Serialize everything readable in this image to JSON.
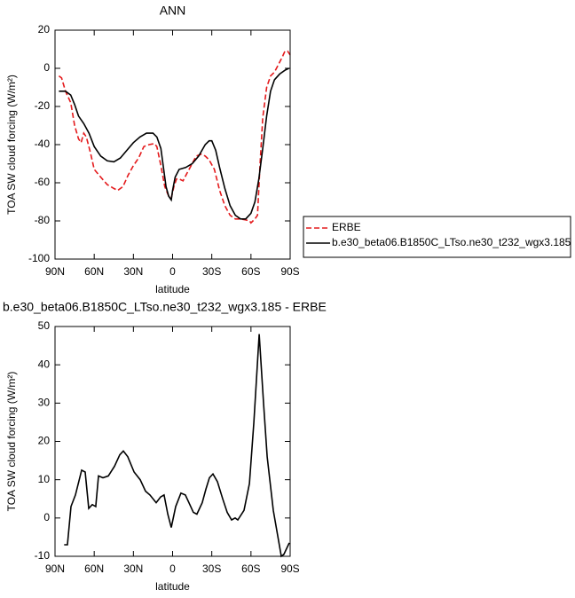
{
  "chart_data": [
    {
      "type": "line",
      "title": "ANN",
      "xlabel": "latitude",
      "ylabel": "TOA SW cloud forcing (W/m²)",
      "xlim": [
        90,
        -90
      ],
      "xticks": [
        {
          "value": 90,
          "label": "90N"
        },
        {
          "value": 60,
          "label": "60N"
        },
        {
          "value": 30,
          "label": "30N"
        },
        0,
        {
          "value": -30,
          "label": "30S"
        },
        {
          "value": -60,
          "label": "60S"
        },
        {
          "value": -90,
          "label": "90S"
        }
      ],
      "ylim": [
        -100,
        20
      ],
      "yticks": [
        -100,
        -80,
        -60,
        -40,
        -20,
        0,
        20
      ],
      "legend": "right",
      "series": [
        {
          "name": "ERBE",
          "color": "#e41a1c",
          "dashed": true,
          "x": [
            87,
            85,
            82,
            78,
            75,
            72,
            70,
            68,
            66,
            63,
            60,
            55,
            50,
            45,
            42,
            38,
            34,
            30,
            26,
            22,
            18,
            14,
            12,
            9,
            6,
            3,
            1,
            -1,
            -3,
            -5,
            -8,
            -11,
            -15,
            -18,
            -22,
            -25,
            -28,
            -32,
            -36,
            -40,
            -44,
            -48,
            -52,
            -56,
            -59,
            -60,
            -63,
            -65,
            -67,
            -69,
            -72,
            -75,
            -78,
            -81,
            -84,
            -86,
            -88,
            -90
          ],
          "values": [
            -4,
            -5,
            -12,
            -18,
            -30,
            -37,
            -39,
            -34,
            -36,
            -44,
            -53,
            -57,
            -61,
            -63,
            -64,
            -62,
            -56,
            -51,
            -47,
            -41,
            -40,
            -39.5,
            -41,
            -51,
            -62,
            -67,
            -68,
            -62,
            -58,
            -58,
            -59,
            -55,
            -50,
            -46,
            -45,
            -46,
            -48,
            -53,
            -64,
            -72,
            -77,
            -79,
            -79,
            -79.5,
            -80,
            -81,
            -79,
            -77,
            -50,
            -26,
            -10,
            -4,
            -2,
            2,
            6,
            9,
            9,
            7
          ]
        },
        {
          "name": "b.e30_beta06.B1850C_LTso.ne30_t232_wgx3.185",
          "color": "#000000",
          "dashed": false,
          "x": [
            87,
            82,
            78,
            75,
            72,
            68,
            64,
            60,
            55,
            50,
            45,
            40,
            35,
            30,
            25,
            20,
            15,
            12,
            9,
            7,
            5,
            3,
            1,
            0,
            -2,
            -5,
            -10,
            -15,
            -20,
            -25,
            -28,
            -30,
            -33,
            -36,
            -40,
            -44,
            -48,
            -52,
            -56,
            -60,
            -63,
            -66,
            -69,
            -72,
            -75,
            -78,
            -82,
            -86,
            -89
          ],
          "values": [
            -12,
            -12,
            -14,
            -19,
            -25,
            -29,
            -34,
            -41,
            -46,
            -48.5,
            -49,
            -47,
            -43,
            -39,
            -36,
            -34,
            -34,
            -36,
            -42,
            -52,
            -62,
            -67,
            -69,
            -64,
            -57,
            -53,
            -52,
            -50,
            -46,
            -40,
            -38,
            -38,
            -43,
            -52,
            -63,
            -72,
            -77,
            -79,
            -79,
            -76,
            -70,
            -58,
            -42,
            -25,
            -12,
            -6,
            -3,
            -1,
            0
          ]
        }
      ]
    },
    {
      "type": "line",
      "title": "b.e30_beta06.B1850C_LTso.ne30_t232_wgx3.185 - ERBE",
      "xlabel": "latitude",
      "ylabel": "TOA SW cloud forcing (W/m²)",
      "xlim": [
        90,
        -90
      ],
      "xticks": [
        {
          "value": 90,
          "label": "90N"
        },
        {
          "value": 60,
          "label": "60N"
        },
        {
          "value": 30,
          "label": "30N"
        },
        0,
        {
          "value": -30,
          "label": "30S"
        },
        {
          "value": -60,
          "label": "60S"
        },
        {
          "value": -90,
          "label": "90S"
        }
      ],
      "ylim": [
        -10,
        50
      ],
      "yticks": [
        -10,
        0,
        10,
        20,
        30,
        40,
        50
      ],
      "series": [
        {
          "color": "#000000",
          "dashed": false,
          "x": [
            83,
            80.5,
            77.8,
            74.4,
            69.6,
            66.9,
            64.2,
            61.5,
            58.8,
            56.7,
            53.3,
            49.2,
            44.5,
            40.4,
            37.7,
            34.3,
            29.5,
            24.8,
            20.7,
            17.3,
            12.6,
            9.2,
            6.5,
            3.7,
            1,
            -2.4,
            -6.4,
            -9.8,
            -13.2,
            -15.9,
            -18.6,
            -22.7,
            -25.5,
            -28.2,
            -30.9,
            -34.3,
            -38.4,
            -41.8,
            -45.2,
            -47.9,
            -49.9,
            -54.7,
            -58.8,
            -62.2,
            -66.3,
            -69.6,
            -72.4,
            -77.1,
            -83.2,
            -85.2,
            -89.3
          ],
          "values": [
            -7,
            -7,
            3,
            6,
            12.5,
            12,
            2.5,
            3.5,
            3,
            11,
            10.5,
            11,
            13.5,
            16.5,
            17.5,
            16,
            12,
            10,
            7,
            6,
            4,
            5.5,
            6,
            1,
            -2.5,
            3,
            6.5,
            6,
            3.5,
            1.5,
            1,
            4,
            7.5,
            10.5,
            11.5,
            9.5,
            5,
            1.5,
            -0.5,
            0,
            -0.5,
            2,
            9,
            25,
            48,
            30,
            16,
            2,
            -10,
            -9.5,
            -6.5
          ]
        }
      ]
    }
  ]
}
